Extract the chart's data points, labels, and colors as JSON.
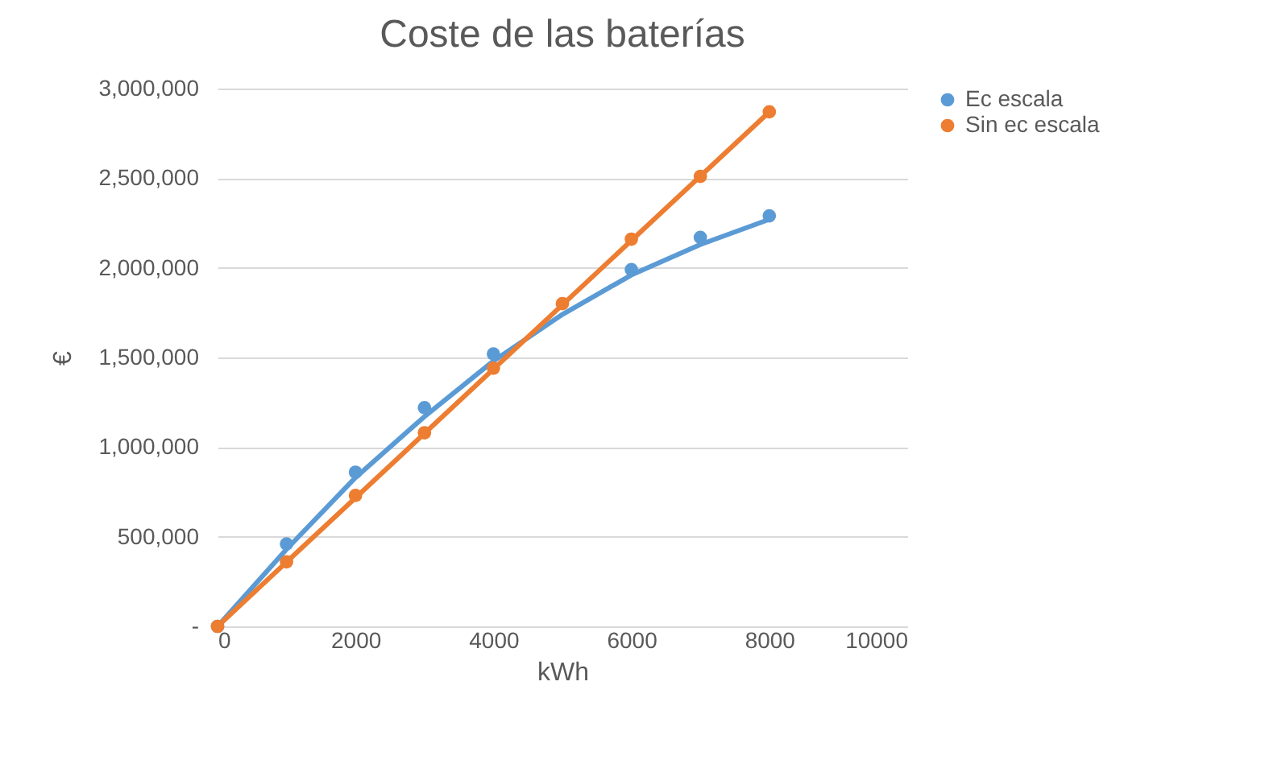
{
  "chart_data": {
    "type": "scatter",
    "title": "Coste de las baterías",
    "xlabel": "kWh",
    "ylabel": "€",
    "x": [
      0,
      1000,
      2000,
      3000,
      4000,
      5000,
      6000,
      7000,
      8000
    ],
    "series": [
      {
        "name": "Ec escala",
        "color": "#5b9bd5",
        "values": [
          0,
          460000,
          860000,
          1220000,
          1520000,
          null,
          1990000,
          2170000,
          2290000
        ]
      },
      {
        "name": "Sin ec escala",
        "color": "#ed7d31",
        "values": [
          0,
          360000,
          730000,
          1080000,
          1440000,
          1800000,
          2160000,
          2510000,
          2870000
        ]
      },
      {
        "type": "line",
        "marker": "none",
        "color": "#5b9bd5",
        "x": [
          0,
          1000,
          2000,
          3000,
          4000,
          5000,
          6000,
          7000,
          8000
        ],
        "values": [
          0,
          430000,
          830000,
          1170000,
          1480000,
          1740000,
          1960000,
          2130000,
          2270000
        ]
      },
      {
        "type": "line",
        "marker": "none",
        "color": "#ed7d31",
        "x": [
          0,
          8000
        ],
        "values": [
          0,
          2870000
        ]
      }
    ],
    "xlim": [
      0,
      10000
    ],
    "xticks": [
      0,
      2000,
      4000,
      6000,
      8000,
      10000
    ],
    "ylim": [
      0,
      3000000
    ],
    "yticks": [
      {
        "value": 0,
        "label": "-"
      },
      {
        "value": 500000,
        "label": "500,000"
      },
      {
        "value": 1000000,
        "label": "1,000,000"
      },
      {
        "value": 1500000,
        "label": "1,500,000"
      },
      {
        "value": 2000000,
        "label": "2,000,000"
      },
      {
        "value": 2500000,
        "label": "2,500,000"
      },
      {
        "value": 3000000,
        "label": "3,000,000"
      }
    ],
    "grid": "y",
    "legend": "right",
    "marker": "circle",
    "line_style": "solid"
  }
}
